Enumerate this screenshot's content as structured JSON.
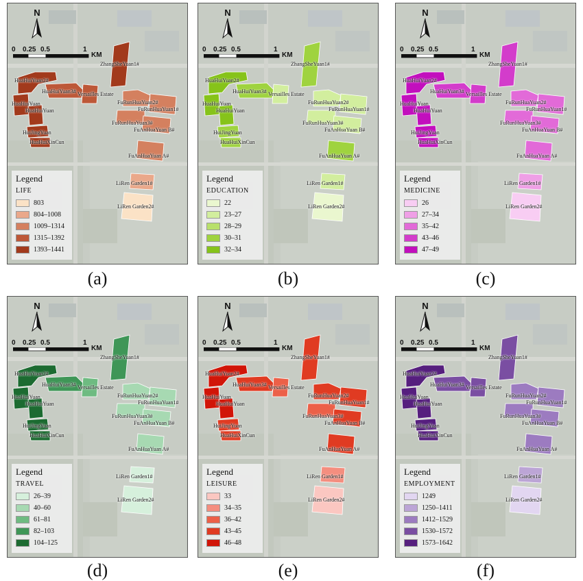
{
  "map_labels": [
    {
      "text": "ZhangSheYuan1#"
    },
    {
      "text": "HuaHuiYuan2#"
    },
    {
      "text": "HuaHuiYuan3#"
    },
    {
      "text": "Versailles Estate"
    },
    {
      "text": "HuaHuiYuan"
    },
    {
      "text": "HuaHuiYuan"
    },
    {
      "text": "FuRunHuaYuan2#"
    },
    {
      "text": "FuRunHuaYuan1#"
    },
    {
      "text": "FuRunHuaYuan3#"
    },
    {
      "text": "FuAnHuaYuan B#"
    },
    {
      "text": "HuiJingYuan"
    },
    {
      "text": "HuaHuiXinCun"
    },
    {
      "text": "FuAnHuaYuan A#"
    },
    {
      "text": "LiRen Garden1#"
    },
    {
      "text": "LiRen Garden2#"
    }
  ],
  "north_letter": "N",
  "scale": {
    "labels": [
      "0",
      "0.25",
      "0.5",
      "1"
    ],
    "unit": "KM"
  },
  "legend_title": "Legend",
  "panels": [
    {
      "caption": "(a)",
      "variable": "LIFE",
      "classes": [
        "803",
        "804–1008",
        "1009–1314",
        "1315–1392",
        "1393–1441"
      ],
      "colors": [
        "#fbe2c6",
        "#eaa88a",
        "#d4805f",
        "#bd5838",
        "#a23a1c"
      ],
      "district_classes": [
        4,
        4,
        3,
        3,
        4,
        4,
        2,
        2,
        2,
        2,
        4,
        4,
        2,
        1,
        0
      ]
    },
    {
      "caption": "(b)",
      "variable": "EDUCATION",
      "classes": [
        "22",
        "23–27",
        "28–29",
        "30–31",
        "32–34"
      ],
      "colors": [
        "#eaf7cf",
        "#d2ee9e",
        "#b8e06b",
        "#9fd33f",
        "#86c31a"
      ],
      "district_classes": [
        3,
        4,
        3,
        1,
        4,
        4,
        1,
        1,
        1,
        1,
        3,
        3,
        3,
        1,
        0
      ]
    },
    {
      "caption": "(c)",
      "variable": "MEDICINE",
      "classes": [
        "26",
        "27–34",
        "35–42",
        "43–46",
        "47–49"
      ],
      "colors": [
        "#f8cdf3",
        "#ef9fe6",
        "#e26ad8",
        "#d33ccb",
        "#c20fbd"
      ],
      "district_classes": [
        3,
        4,
        3,
        3,
        4,
        4,
        2,
        2,
        2,
        2,
        4,
        4,
        2,
        1,
        0
      ]
    },
    {
      "caption": "(d)",
      "variable": "TRAVEL",
      "classes": [
        "26–39",
        "40–60",
        "61–81",
        "82–103",
        "104–125"
      ],
      "colors": [
        "#d6f0dc",
        "#a7d9b2",
        "#6ebb81",
        "#3f9657",
        "#1c6b31"
      ],
      "district_classes": [
        3,
        4,
        3,
        2,
        4,
        4,
        1,
        1,
        1,
        1,
        4,
        4,
        1,
        0,
        0
      ]
    },
    {
      "caption": "(e)",
      "variable": "LEISURE",
      "classes": [
        "33",
        "34–35",
        "36–42",
        "43–45",
        "46–48"
      ],
      "colors": [
        "#fbc7c1",
        "#f48e7f",
        "#ec6048",
        "#e03b22",
        "#d11508"
      ],
      "district_classes": [
        3,
        4,
        3,
        2,
        4,
        4,
        3,
        3,
        2,
        3,
        3,
        3,
        3,
        1,
        0
      ]
    },
    {
      "caption": "(f)",
      "variable": "EMPLOYMENT",
      "classes": [
        "1249",
        "1250–1411",
        "1412–1529",
        "1530–1572",
        "1573–1642"
      ],
      "colors": [
        "#e2d6f1",
        "#bca5d6",
        "#9c7bc0",
        "#7a4ea2",
        "#561f7e"
      ],
      "district_classes": [
        3,
        4,
        3,
        3,
        4,
        4,
        2,
        2,
        2,
        2,
        4,
        4,
        2,
        1,
        0
      ]
    }
  ]
}
